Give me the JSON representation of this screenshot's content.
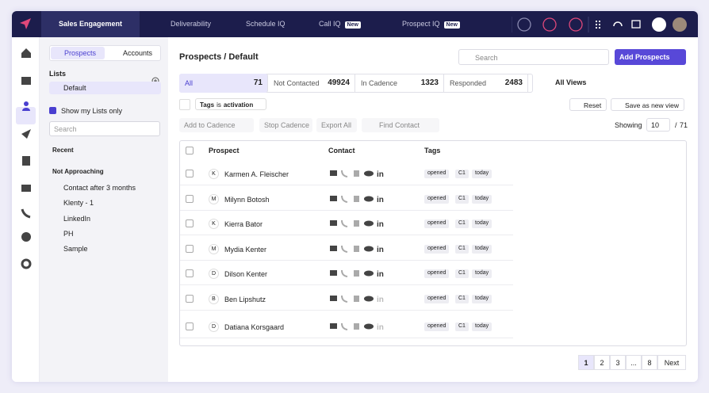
{
  "nav": {
    "tabs": [
      {
        "label": "Sales Engagement"
      },
      {
        "label": "Deliverability"
      },
      {
        "label": "Schedule IQ"
      },
      {
        "label": "Call IQ",
        "badge": "New"
      },
      {
        "label": "Prospect IQ",
        "badge": "New"
      }
    ]
  },
  "lists_panel": {
    "toggle": [
      "Prospects",
      "Accounts"
    ],
    "title": "Lists",
    "selected": "Default",
    "show_mine": "Show my Lists only",
    "search_placeholder": "Search",
    "recent": "Recent",
    "group": "Not Approaching",
    "items": [
      "Contact after 3 months",
      "Klenty - 1",
      "LinkedIn",
      "PH",
      "Sample"
    ]
  },
  "main": {
    "title": "Prospects / Default",
    "search_placeholder": "Search",
    "add_button": "Add Prospects",
    "stats": [
      {
        "label": "All",
        "value": 71
      },
      {
        "label": "Not Contacted",
        "value": 49924
      },
      {
        "label": "In Cadence",
        "value": 1323
      },
      {
        "label": "Responded",
        "value": 2483
      }
    ],
    "views": "All Views",
    "filter": {
      "field": "Tags",
      "op": "is",
      "value": "activation"
    },
    "reset": "Reset",
    "save_view": "Save as new view",
    "actions": [
      "Add to Cadence",
      "Stop Cadence",
      "Export All",
      "Find Contact"
    ],
    "showing": "Showing",
    "page_size": 10,
    "total": 71,
    "table": {
      "headers": [
        "Prospect",
        "Contact",
        "Tags"
      ],
      "rows": [
        {
          "initial": "K",
          "name": "Karmen A. Fleischer",
          "tags": [
            "opened",
            "C1",
            "today"
          ]
        },
        {
          "initial": "M",
          "name": "Milynn Botosh",
          "tags": [
            "opened",
            "C1",
            "today"
          ]
        },
        {
          "initial": "K",
          "name": "Kierra Bator",
          "tags": [
            "opened",
            "C1",
            "today"
          ]
        },
        {
          "initial": "M",
          "name": "Mydia Kenter",
          "tags": [
            "opened",
            "C1",
            "today"
          ]
        },
        {
          "initial": "D",
          "name": "Dilson Kenter",
          "tags": [
            "opened",
            "C1",
            "today"
          ]
        },
        {
          "initial": "B",
          "name": "Ben Lipshutz",
          "tags": [
            "opened",
            "C1",
            "today"
          ]
        },
        {
          "initial": "D",
          "name": "Datiana Korsgaard",
          "tags": [
            "opened",
            "C1",
            "today"
          ]
        }
      ]
    },
    "pagination": [
      1,
      2,
      3,
      "...",
      8,
      "Next"
    ]
  }
}
